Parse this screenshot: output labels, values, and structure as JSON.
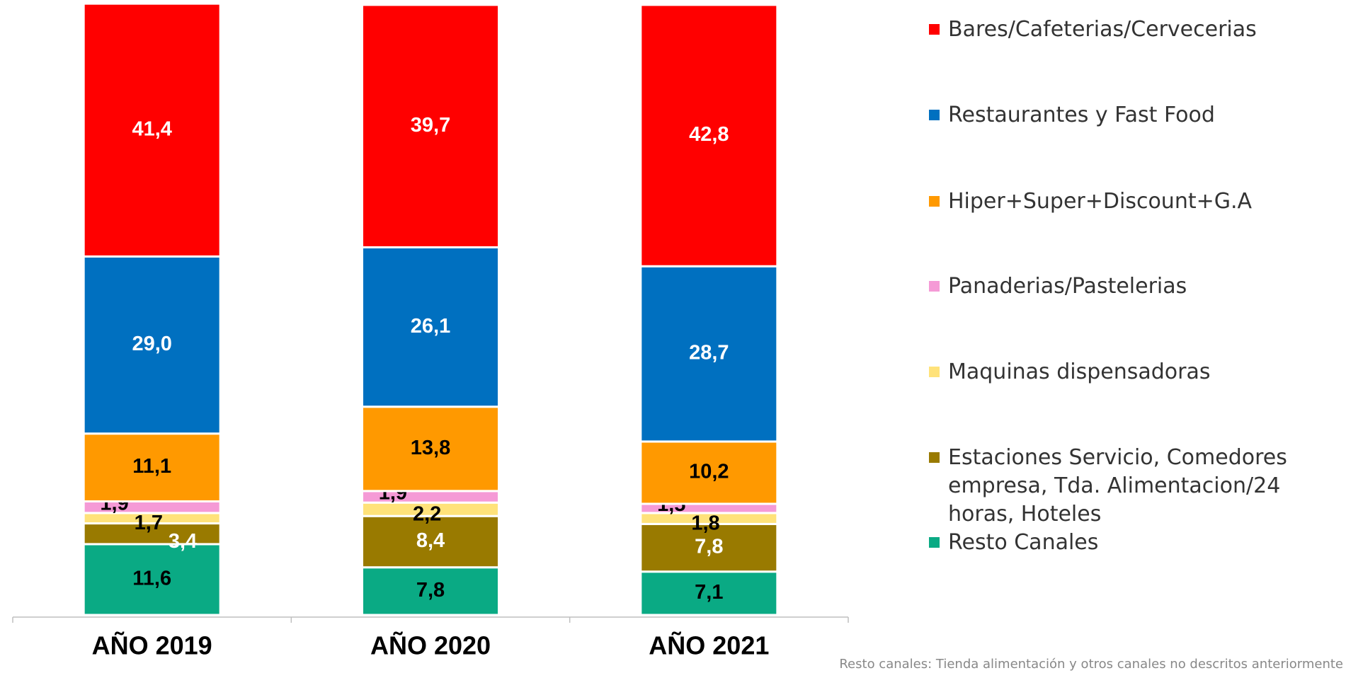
{
  "chart_data": {
    "type": "stacked_bar",
    "categories": [
      "AÑO 2019",
      "AÑO 2020",
      "AÑO 2021"
    ],
    "ylim": [
      0,
      100
    ],
    "series": [
      {
        "name": "Resto Canales",
        "color": "#0aaa84",
        "label_color": "#000000",
        "values": [
          11.6,
          7.8,
          7.1
        ],
        "value_labels": [
          "11,6",
          "7,8",
          "7,1"
        ]
      },
      {
        "name": "Estaciones Servicio, Comedores empresa, Tda. Alimentacion/24 horas, Hoteles",
        "color": "#997a00",
        "label_color": "#ffffff",
        "values": [
          3.4,
          8.4,
          7.8
        ],
        "value_labels": [
          "3,4",
          "8,4",
          "7,8"
        ]
      },
      {
        "name": "Maquinas dispensadoras",
        "color": "#ffe27a",
        "label_color": "#000000",
        "values": [
          1.7,
          2.2,
          1.8
        ],
        "value_labels": [
          "1,7",
          "2,2",
          "1,8"
        ]
      },
      {
        "name": "Panaderias/Pastelerias",
        "color": "#f59ad6",
        "label_color": "#000000",
        "values": [
          1.9,
          1.9,
          1.5
        ],
        "value_labels": [
          "1,9",
          "1,9",
          "1,5"
        ]
      },
      {
        "name": "Hiper+Super+Discount+G.A",
        "color": "#ff9900",
        "label_color": "#000000",
        "values": [
          11.1,
          13.8,
          10.2
        ],
        "value_labels": [
          "11,1",
          "13,8",
          "10,2"
        ]
      },
      {
        "name": "Restaurantes y Fast Food",
        "color": "#0070c0",
        "label_color": "#ffffff",
        "values": [
          29.0,
          26.1,
          28.7
        ],
        "value_labels": [
          "29,0",
          "26,1",
          "28,7"
        ]
      },
      {
        "name": "Bares/Cafeterias/Cervecerias",
        "color": "#ff0000",
        "label_color": "#ffffff",
        "values": [
          41.4,
          39.7,
          42.8
        ],
        "value_labels": [
          "41,4",
          "39,7",
          "42,8"
        ]
      }
    ],
    "footnote": "Resto canales: Tienda alimentación y otros canales no descritos anteriormente"
  }
}
